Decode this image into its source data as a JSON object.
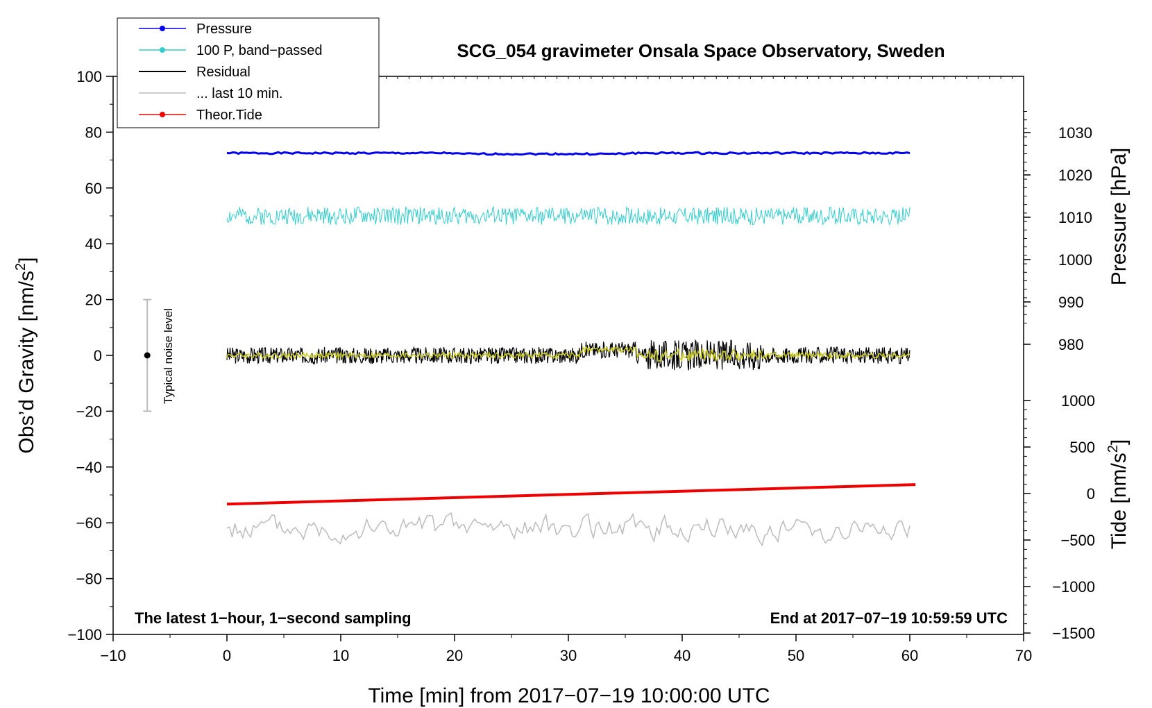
{
  "chart_data": {
    "type": "line",
    "title": "SCG_054 gravimeter Onsala Space Observatory, Sweden",
    "xlabel": "Time [min] from 2017−07−19 10:00:00 UTC",
    "ylabel": "Obs’d Gravity [nm/s",
    "ylabel_sup": "2",
    "ylabel_end": "]",
    "right_pressure_label": "Pressure [hPa]",
    "right_tide_label": "Tide [nm/s",
    "right_tide_sup": "2",
    "right_tide_end": "]",
    "xlim": [
      -10,
      70
    ],
    "ylim": [
      -100,
      100
    ],
    "x_ticks": [
      -10,
      0,
      10,
      20,
      30,
      40,
      50,
      60,
      70
    ],
    "x_tick_labels": [
      "−10",
      "0",
      "10",
      "20",
      "30",
      "40",
      "50",
      "60",
      "70"
    ],
    "y_ticks": [
      -100,
      -80,
      -60,
      -40,
      -20,
      0,
      20,
      40,
      60,
      80,
      100
    ],
    "y_tick_labels": [
      "−100",
      "−80",
      "−60",
      "−40",
      "−20",
      "0",
      "20",
      "40",
      "60",
      "80",
      "100"
    ],
    "pressure_ticks": [
      980,
      990,
      1000,
      1010,
      1020,
      1030
    ],
    "pressure_tick_labels": [
      "980",
      "990",
      "1000",
      "1010",
      "1020",
      "1030"
    ],
    "tide_ticks": [
      -1500,
      -1000,
      -500,
      0,
      500,
      1000
    ],
    "tide_tick_labels": [
      "−1500",
      "−1000",
      "−500",
      "0",
      "500",
      "1000"
    ],
    "annotation_left": "The latest 1−hour, 1−second sampling",
    "annotation_right": "End at 2017−07−19 10:59:59 UTC",
    "noise_label": "Typical noise level",
    "noise_bar": {
      "x": -7,
      "center": 0,
      "half_range": 20
    },
    "legend": [
      {
        "name": "Pressure",
        "color": "#0000ee",
        "marker": true
      },
      {
        "name": "100 P, band−passed",
        "color": "#33cccc",
        "marker": true
      },
      {
        "name": "Residual",
        "color": "#000000",
        "marker": false
      },
      {
        "name": "... last 10 min.",
        "color": "#bbbbbb",
        "marker": false
      },
      {
        "name": "Theor.Tide",
        "color": "#ee0000",
        "marker": true
      }
    ],
    "series": [
      {
        "name": "Pressure",
        "color": "#0000ee",
        "x_range": [
          0,
          60
        ],
        "level": 72.5,
        "noise": 0.3,
        "seed": 1,
        "points": 240
      },
      {
        "name": "100 P, band−passed",
        "color": "#33cccc",
        "x_range": [
          0,
          60
        ],
        "level": 50,
        "noise": 3.2,
        "seed": 2,
        "points": 700
      },
      {
        "name": "Residual",
        "color": "#000000",
        "x_range": [
          0,
          60
        ],
        "level": 0,
        "noise": 3.0,
        "seed": 3,
        "points": 1100
      },
      {
        "name": "Residual smoothed",
        "color": "#cccc22",
        "x_range": [
          0,
          60
        ],
        "level": 0,
        "noise": 1.0,
        "seed": 4,
        "points": 600
      },
      {
        "name": "... last 10 min.",
        "color": "#bbbbbb",
        "x_range": [
          0,
          60
        ],
        "level": -62,
        "noise": 3.5,
        "seed": 5,
        "points": 260
      },
      {
        "name": "Theor.Tide",
        "color": "#ee0000",
        "x_range": [
          0,
          60.5
        ],
        "y_start": -53.3,
        "y_end": -46.3
      }
    ]
  }
}
